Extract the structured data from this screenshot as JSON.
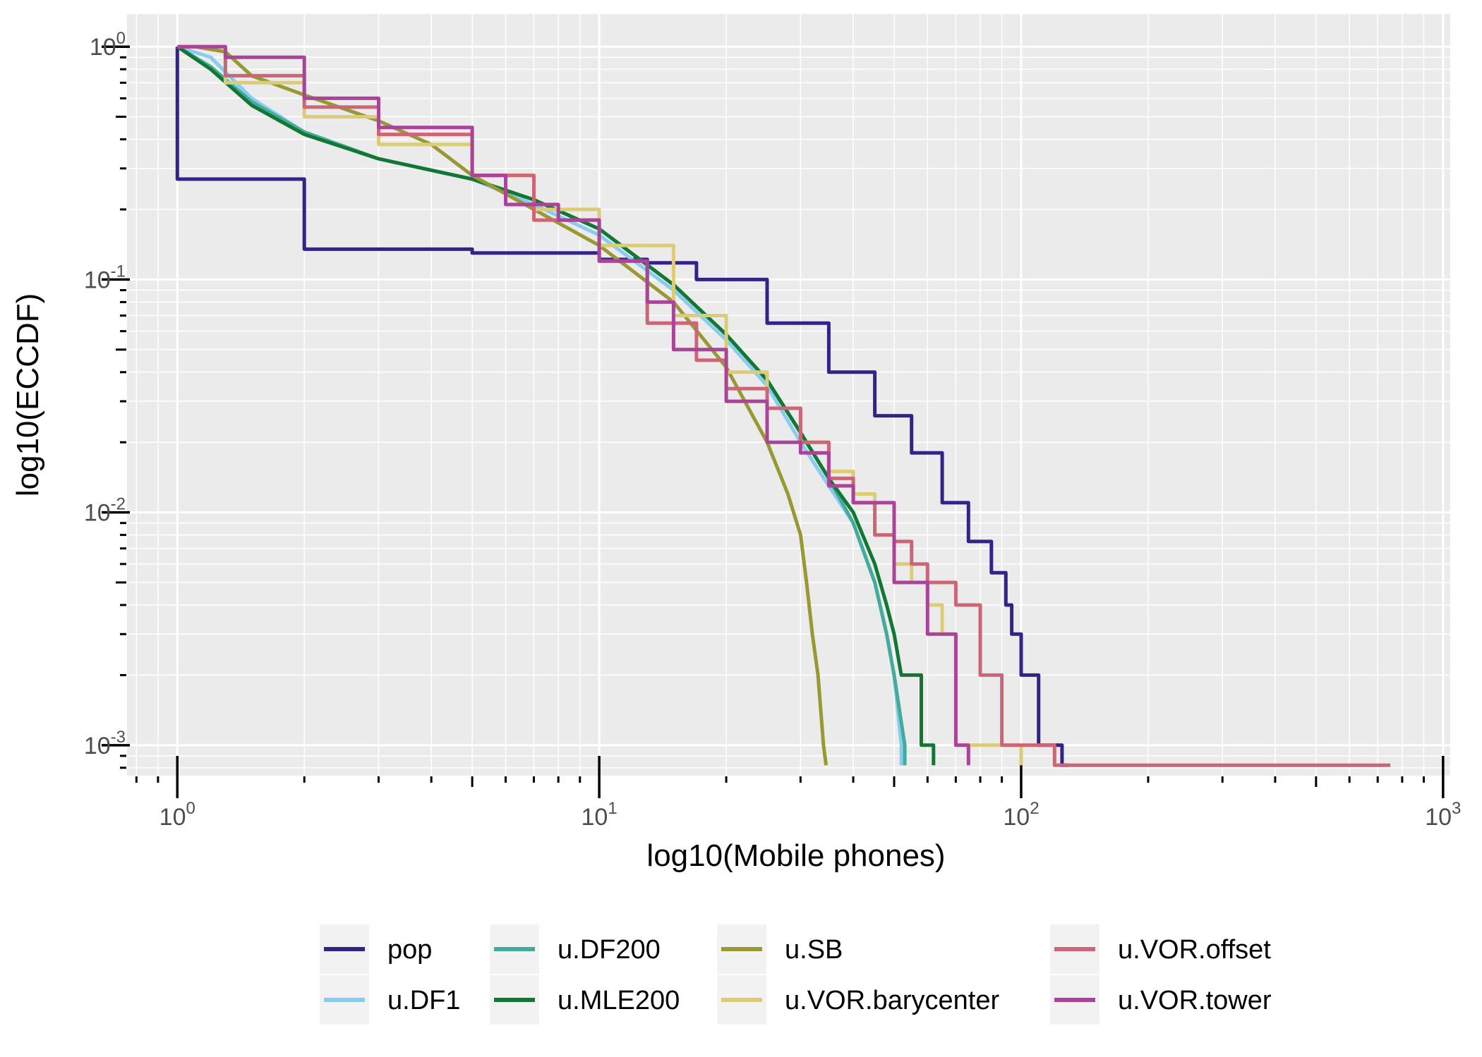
{
  "chart_data": {
    "type": "line",
    "subtype": "step-ecdf-loglog",
    "title": "",
    "xlabel": "log10(Mobile phones)",
    "ylabel": "log10(ECCDF)",
    "xscale": "log10",
    "yscale": "log10",
    "xlim": [
      0.76,
      1040
    ],
    "ylim": [
      0.00074,
      1.38
    ],
    "x_ticks": [
      {
        "value": 1,
        "base": "10",
        "exp": "0"
      },
      {
        "value": 10,
        "base": "10",
        "exp": "1"
      },
      {
        "value": 100,
        "base": "10",
        "exp": "2"
      },
      {
        "value": 1000,
        "base": "10",
        "exp": "3"
      }
    ],
    "y_ticks": [
      {
        "value": 1,
        "base": "10",
        "exp": "0"
      },
      {
        "value": 0.1,
        "base": "10",
        "exp": "-1"
      },
      {
        "value": 0.01,
        "base": "10",
        "exp": "-2"
      },
      {
        "value": 0.001,
        "base": "10",
        "exp": "-3"
      }
    ],
    "grid": true,
    "legend_position": "bottom",
    "series": [
      {
        "name": "pop",
        "color": "#332288",
        "step": true,
        "points": [
          [
            1,
            1
          ],
          [
            1,
            0.27
          ],
          [
            2,
            0.27
          ],
          [
            2,
            0.135
          ],
          [
            5,
            0.13
          ],
          [
            10,
            0.122
          ],
          [
            13,
            0.118
          ],
          [
            17,
            0.1
          ],
          [
            25,
            0.065
          ],
          [
            35,
            0.04
          ],
          [
            45,
            0.026
          ],
          [
            55,
            0.018
          ],
          [
            65,
            0.011
          ],
          [
            75,
            0.0075
          ],
          [
            85,
            0.0055
          ],
          [
            92,
            0.004
          ],
          [
            95,
            0.003
          ],
          [
            100,
            0.003
          ],
          [
            100,
            0.002
          ],
          [
            110,
            0.002
          ],
          [
            110,
            0.001
          ],
          [
            125,
            0.001
          ],
          [
            125,
            0.00082
          ],
          [
            130,
            0.00082
          ]
        ]
      },
      {
        "name": "u.DF1",
        "color": "#88CCEE",
        "points": [
          [
            1,
            1
          ],
          [
            1.2,
            0.9
          ],
          [
            1.5,
            0.6
          ],
          [
            2,
            0.43
          ],
          [
            3,
            0.33
          ],
          [
            5,
            0.27
          ],
          [
            7,
            0.21
          ],
          [
            10,
            0.155
          ],
          [
            15,
            0.09
          ],
          [
            20,
            0.055
          ],
          [
            25,
            0.035
          ],
          [
            30,
            0.02
          ],
          [
            35,
            0.013
          ],
          [
            40,
            0.009
          ],
          [
            45,
            0.005
          ],
          [
            48,
            0.003
          ],
          [
            50,
            0.002
          ],
          [
            52,
            0.001
          ],
          [
            52,
            0.00082
          ]
        ]
      },
      {
        "name": "u.DF200",
        "color": "#44AA99",
        "points": [
          [
            1,
            1
          ],
          [
            1.2,
            0.82
          ],
          [
            1.5,
            0.58
          ],
          [
            2,
            0.43
          ],
          [
            3,
            0.33
          ],
          [
            5,
            0.27
          ],
          [
            7,
            0.22
          ],
          [
            10,
            0.165
          ],
          [
            15,
            0.095
          ],
          [
            20,
            0.058
          ],
          [
            25,
            0.037
          ],
          [
            30,
            0.022
          ],
          [
            35,
            0.014
          ],
          [
            40,
            0.009
          ],
          [
            45,
            0.005
          ],
          [
            48,
            0.003
          ],
          [
            50,
            0.002
          ],
          [
            53,
            0.001
          ],
          [
            53,
            0.00082
          ]
        ]
      },
      {
        "name": "u.MLE200",
        "color": "#117733",
        "points": [
          [
            1,
            1
          ],
          [
            1.2,
            0.8
          ],
          [
            1.5,
            0.56
          ],
          [
            2,
            0.42
          ],
          [
            3,
            0.33
          ],
          [
            5,
            0.27
          ],
          [
            7,
            0.22
          ],
          [
            10,
            0.165
          ],
          [
            15,
            0.095
          ],
          [
            20,
            0.058
          ],
          [
            25,
            0.037
          ],
          [
            30,
            0.022
          ],
          [
            35,
            0.014
          ],
          [
            40,
            0.01
          ],
          [
            45,
            0.006
          ],
          [
            48,
            0.004
          ],
          [
            50,
            0.003
          ],
          [
            52,
            0.002
          ],
          [
            58,
            0.002
          ],
          [
            58,
            0.001
          ],
          [
            62,
            0.001
          ],
          [
            62,
            0.00082
          ]
        ]
      },
      {
        "name": "u.SB",
        "color": "#999933",
        "points": [
          [
            1.1,
            1
          ],
          [
            1.3,
            0.95
          ],
          [
            1.5,
            0.75
          ],
          [
            2,
            0.62
          ],
          [
            3,
            0.48
          ],
          [
            4,
            0.38
          ],
          [
            5,
            0.28
          ],
          [
            7,
            0.2
          ],
          [
            10,
            0.14
          ],
          [
            15,
            0.08
          ],
          [
            20,
            0.042
          ],
          [
            25,
            0.02
          ],
          [
            28,
            0.012
          ],
          [
            30,
            0.008
          ],
          [
            31,
            0.005
          ],
          [
            32,
            0.003
          ],
          [
            33,
            0.002
          ],
          [
            34,
            0.001
          ],
          [
            34.5,
            0.00082
          ]
        ]
      },
      {
        "name": "u.VOR.barycenter",
        "color": "#DDCC77",
        "step": true,
        "points": [
          [
            1,
            1
          ],
          [
            1.3,
            0.7
          ],
          [
            2,
            0.5
          ],
          [
            3,
            0.38
          ],
          [
            5,
            0.28
          ],
          [
            7,
            0.2
          ],
          [
            10,
            0.14
          ],
          [
            15,
            0.07
          ],
          [
            20,
            0.04
          ],
          [
            25,
            0.028
          ],
          [
            30,
            0.02
          ],
          [
            35,
            0.015
          ],
          [
            40,
            0.012
          ],
          [
            45,
            0.008
          ],
          [
            50,
            0.006
          ],
          [
            55,
            0.005
          ],
          [
            60,
            0.004
          ],
          [
            65,
            0.003
          ],
          [
            70,
            0.003
          ],
          [
            70,
            0.001
          ],
          [
            100,
            0.001
          ],
          [
            100,
            0.00082
          ]
        ]
      },
      {
        "name": "u.VOR.offset",
        "color": "#CC6677",
        "step": true,
        "points": [
          [
            1,
            1
          ],
          [
            1.3,
            0.75
          ],
          [
            2,
            0.55
          ],
          [
            3,
            0.42
          ],
          [
            5,
            0.28
          ],
          [
            7,
            0.18
          ],
          [
            10,
            0.12
          ],
          [
            13,
            0.065
          ],
          [
            17,
            0.045
          ],
          [
            20,
            0.034
          ],
          [
            25,
            0.028
          ],
          [
            30,
            0.02
          ],
          [
            35,
            0.014
          ],
          [
            40,
            0.011
          ],
          [
            45,
            0.008
          ],
          [
            50,
            0.0075
          ],
          [
            55,
            0.006
          ],
          [
            60,
            0.005
          ],
          [
            70,
            0.004
          ],
          [
            80,
            0.003
          ],
          [
            80,
            0.002
          ],
          [
            90,
            0.002
          ],
          [
            90,
            0.001
          ],
          [
            120,
            0.001
          ],
          [
            120,
            0.00082
          ],
          [
            750,
            0.00082
          ]
        ]
      },
      {
        "name": "u.VOR.tower",
        "color": "#AA4499",
        "step": true,
        "points": [
          [
            1,
            1
          ],
          [
            1.3,
            0.9
          ],
          [
            2,
            0.6
          ],
          [
            3,
            0.45
          ],
          [
            5,
            0.28
          ],
          [
            6,
            0.21
          ],
          [
            8,
            0.18
          ],
          [
            10,
            0.12
          ],
          [
            13,
            0.08
          ],
          [
            15,
            0.05
          ],
          [
            20,
            0.03
          ],
          [
            25,
            0.02
          ],
          [
            30,
            0.018
          ],
          [
            35,
            0.013
          ],
          [
            40,
            0.011
          ],
          [
            50,
            0.011
          ],
          [
            50,
            0.005
          ],
          [
            60,
            0.005
          ],
          [
            60,
            0.003
          ],
          [
            70,
            0.003
          ],
          [
            70,
            0.001
          ],
          [
            75,
            0.001
          ],
          [
            75,
            0.00082
          ]
        ]
      }
    ]
  }
}
